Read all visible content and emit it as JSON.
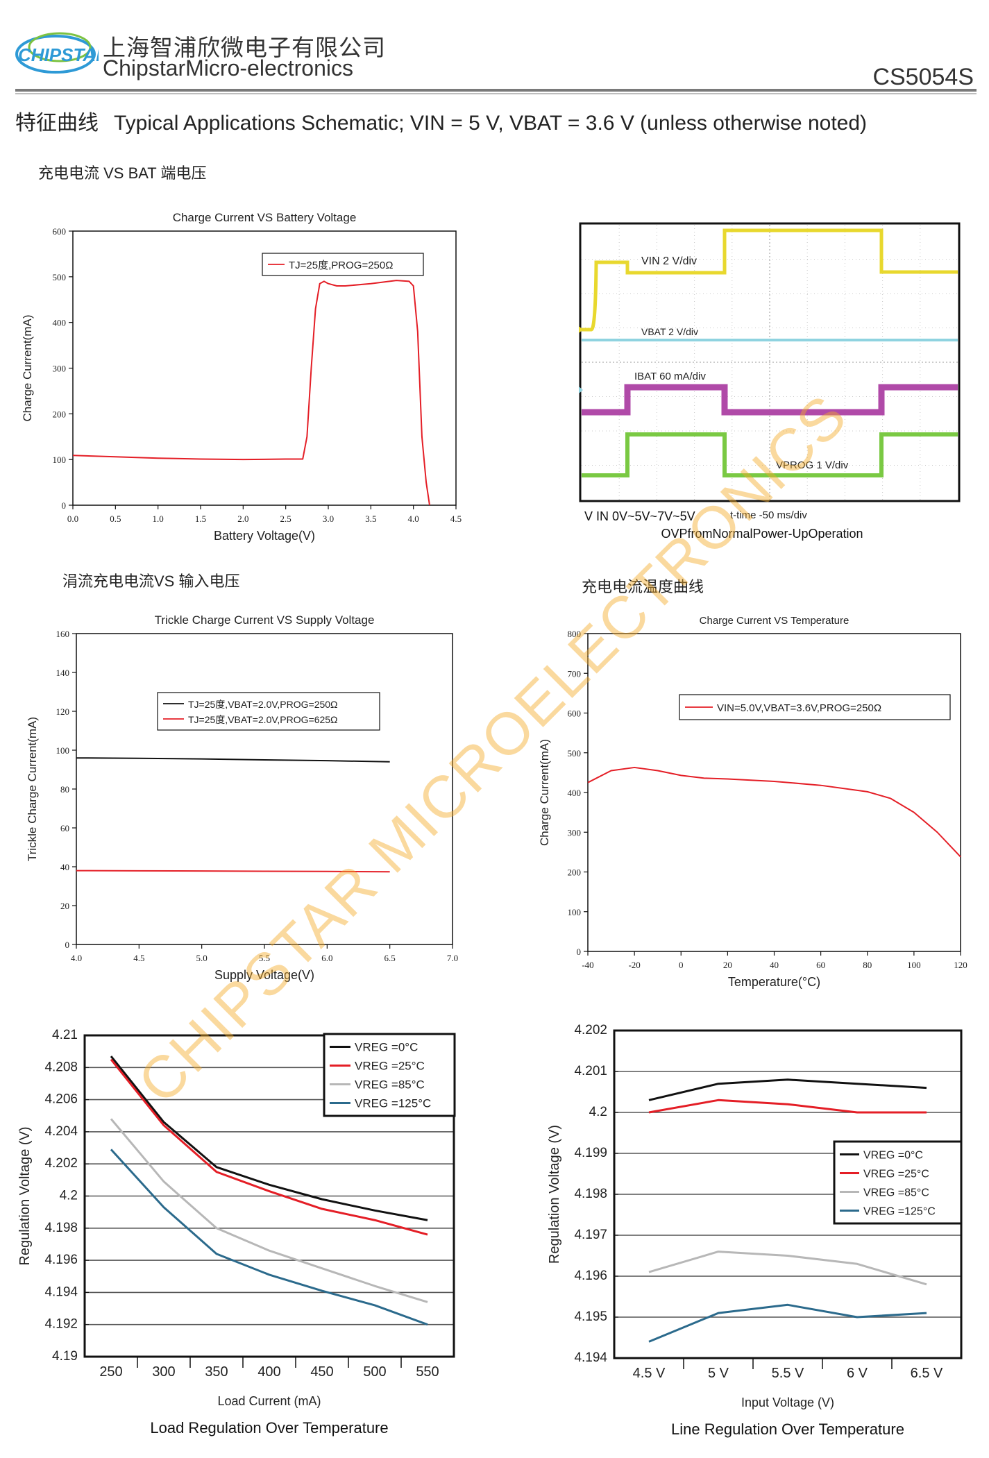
{
  "header": {
    "logo_text": "CHIPSTAR",
    "company_cn": "上海智浦欣微电子有限公司",
    "company_en": "ChipstarMicro-electronics",
    "part_number": "CS5054S"
  },
  "section": {
    "title_cn": "特征曲线",
    "title_en": "Typical Applications Schematic; VIN = 5 V, VBAT = 3.6 V (unless otherwise noted)"
  },
  "captions": {
    "c1": "充电电流 VS BAT 端电压",
    "c2": "涓流充电电流VS 输入电压",
    "c3": "充电电流温度曲线"
  },
  "watermark": "CHIPSTAR MICROELECTRONICS",
  "colors": {
    "red": "#e41e26",
    "black": "#111111",
    "gray": "#b7b7b7",
    "blue": "#2b6a8c",
    "scope_yellow": "#e8d82e",
    "scope_cyan": "#8fd3e0",
    "scope_magenta": "#b04aa8",
    "scope_green": "#7ac943"
  },
  "chart_data": [
    {
      "id": "charge-vs-battery",
      "type": "line",
      "title": "Charge Current VS Battery Voltage",
      "xlabel": "Battery Voltage(V)",
      "ylabel": "Charge Current(mA)",
      "xlim": [
        0,
        4.5
      ],
      "ylim": [
        0,
        600
      ],
      "xticks": [
        "0.0",
        "0.5",
        "1.0",
        "1.5",
        "2.0",
        "2.5",
        "3.0",
        "3.5",
        "4.0",
        "4.5"
      ],
      "yticks": [
        "0",
        "100",
        "200",
        "300",
        "400",
        "500",
        "600"
      ],
      "legend": "top-right",
      "series": [
        {
          "name": "TJ=25度,PROG=250Ω",
          "color": "red",
          "x": [
            0.0,
            0.5,
            1.0,
            1.5,
            2.0,
            2.5,
            2.7,
            2.75,
            2.8,
            2.85,
            2.9,
            2.95,
            3.0,
            3.1,
            3.2,
            3.5,
            3.8,
            3.95,
            4.0,
            4.05,
            4.1,
            4.15,
            4.19
          ],
          "y": [
            109,
            106,
            103,
            101,
            100,
            101,
            101,
            150,
            300,
            430,
            485,
            490,
            485,
            480,
            480,
            485,
            492,
            490,
            480,
            380,
            150,
            50,
            0
          ]
        }
      ]
    },
    {
      "id": "ovp-scope",
      "type": "line",
      "title": "OVPfromNormalPower-UpOperation",
      "xlabel": "t-time -50 ms/div",
      "vin_note": "V IN  0V~5V~7V~5V",
      "channels": [
        {
          "label": "VIN 2 V/div",
          "color": "scope_yellow"
        },
        {
          "label": "VBAT   2 V/div",
          "color": "scope_cyan"
        },
        {
          "label": "IBAT 60 mA/div",
          "color": "scope_magenta"
        },
        {
          "label": "VPROG 1 V/div",
          "color": "scope_green"
        }
      ]
    },
    {
      "id": "trickle-vs-supply",
      "type": "line",
      "title": "Trickle Charge Current VS Supply Voltage",
      "xlabel": "Supply Voltage(V)",
      "ylabel": "Trickle Charge Current(mA)",
      "xlim": [
        4.0,
        7.0
      ],
      "ylim": [
        0,
        160
      ],
      "xticks": [
        "4.0",
        "4.5",
        "5.0",
        "5.5",
        "6.0",
        "6.5",
        "7.0"
      ],
      "yticks": [
        "0",
        "20",
        "40",
        "60",
        "80",
        "100",
        "120",
        "140",
        "160"
      ],
      "legend": "top-center",
      "series": [
        {
          "name": "TJ=25度,VBAT=2.0V,PROG=250Ω",
          "color": "black",
          "x": [
            4.0,
            4.5,
            5.0,
            5.5,
            6.0,
            6.5
          ],
          "y": [
            96,
            95.8,
            95.5,
            95,
            94.6,
            94
          ]
        },
        {
          "name": "TJ=25度,VBAT=2.0V,PROG=625Ω",
          "color": "red",
          "x": [
            4.0,
            4.5,
            5.0,
            5.5,
            6.0,
            6.5
          ],
          "y": [
            38,
            37.9,
            37.8,
            37.7,
            37.6,
            37.4
          ]
        }
      ]
    },
    {
      "id": "charge-vs-temp",
      "type": "line",
      "title": "Charge Current VS Temperature",
      "xlabel": "Temperature(°C)",
      "ylabel": "Charge Current(mA)",
      "xlim": [
        -40,
        120
      ],
      "ylim": [
        0,
        800
      ],
      "xticks": [
        "-40",
        "-20",
        "0",
        "20",
        "40",
        "60",
        "80",
        "100",
        "120"
      ],
      "yticks": [
        "0",
        "100",
        "200",
        "300",
        "400",
        "500",
        "600",
        "700",
        "800"
      ],
      "legend": "top-right",
      "series": [
        {
          "name": "VIN=5.0V,VBAT=3.6V,PROG=250Ω",
          "color": "red",
          "x": [
            -40,
            -30,
            -20,
            -10,
            0,
            10,
            20,
            40,
            60,
            80,
            90,
            100,
            110,
            120
          ],
          "y": [
            425,
            455,
            463,
            455,
            443,
            436,
            434,
            428,
            418,
            402,
            385,
            350,
            300,
            238
          ]
        }
      ]
    },
    {
      "id": "load-regulation",
      "type": "line",
      "title": "Load Regulation Over Temperature",
      "xlabel": "Load Current (mA)",
      "ylabel": "Regulation Voltage (V)",
      "categories": [
        "250",
        "300",
        "350",
        "400",
        "450",
        "500",
        "550"
      ],
      "ylim": [
        4.19,
        4.21
      ],
      "yticks": [
        "4.19",
        "4.192",
        "4.194",
        "4.196",
        "4.198",
        "4.2",
        "4.202",
        "4.204",
        "4.206",
        "4.208",
        "4.21"
      ],
      "legend": "top-right",
      "series": [
        {
          "name": "VREG =0°C",
          "color": "black",
          "values": [
            4.2087,
            4.2046,
            4.2018,
            4.2007,
            4.1998,
            4.1991,
            4.1985
          ]
        },
        {
          "name": "VREG =25°C",
          "color": "red",
          "values": [
            4.2085,
            4.2044,
            4.2015,
            4.2003,
            4.1992,
            4.1985,
            4.1976
          ]
        },
        {
          "name": "VREG =85°C",
          "color": "gray",
          "values": [
            4.2048,
            4.2009,
            4.198,
            4.1966,
            4.1955,
            4.1944,
            4.1934
          ]
        },
        {
          "name": "VREG =125°C",
          "color": "blue",
          "values": [
            4.2029,
            4.1993,
            4.1964,
            4.1951,
            4.1941,
            4.1932,
            4.192
          ]
        }
      ]
    },
    {
      "id": "line-regulation",
      "type": "line",
      "title": "Line Regulation Over Temperature",
      "xlabel": "Input Voltage (V)",
      "ylabel": "Regulation Voltage (V)",
      "categories": [
        "4.5 V",
        "5 V",
        "5.5 V",
        "6 V",
        "6.5 V"
      ],
      "ylim": [
        4.194,
        4.202
      ],
      "yticks": [
        "4.194",
        "4.195",
        "4.196",
        "4.197",
        "4.198",
        "4.199",
        "4.2",
        "4.201",
        "4.202"
      ],
      "legend": "right",
      "series": [
        {
          "name": "VREG =0°C",
          "color": "black",
          "values": [
            4.2003,
            4.2007,
            4.2008,
            4.2007,
            4.2006
          ]
        },
        {
          "name": "VREG =25°C",
          "color": "red",
          "values": [
            4.2,
            4.2003,
            4.2002,
            4.2,
            4.2
          ]
        },
        {
          "name": "VREG =85°C",
          "color": "gray",
          "values": [
            4.1961,
            4.1966,
            4.1965,
            4.1963,
            4.1958
          ]
        },
        {
          "name": "VREG =125°C",
          "color": "blue",
          "values": [
            4.1944,
            4.1951,
            4.1953,
            4.195,
            4.1951
          ]
        }
      ]
    }
  ]
}
